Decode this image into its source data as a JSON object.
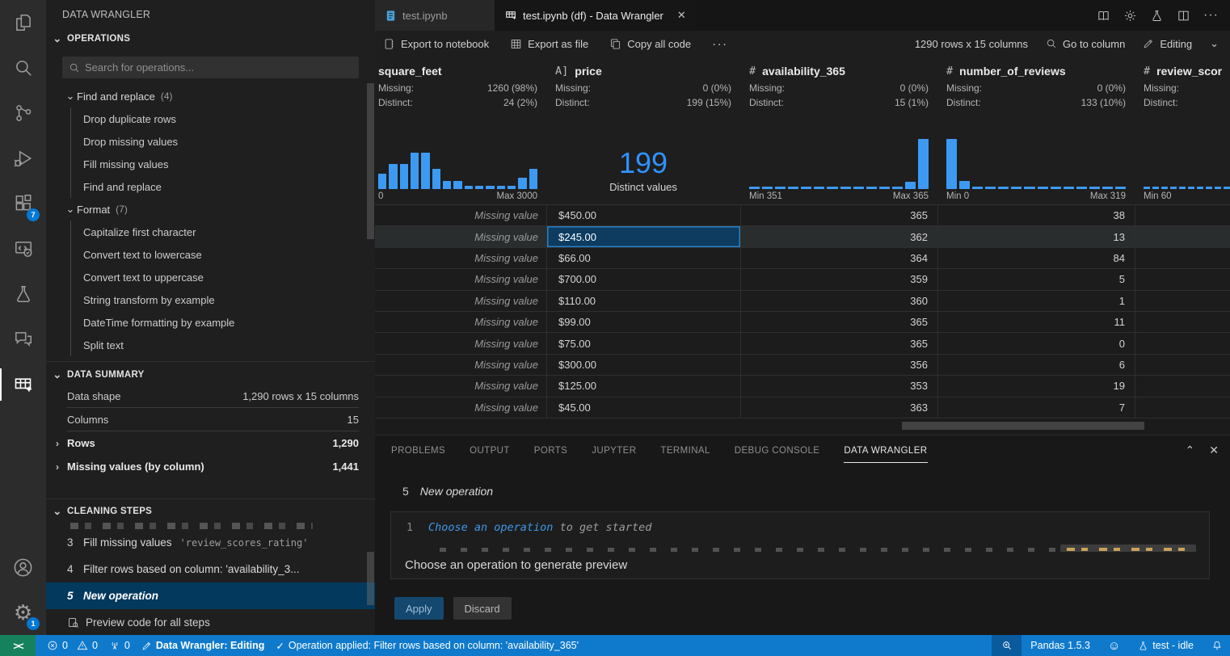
{
  "app": {
    "title": "DATA WRANGLER"
  },
  "activity_bar": {
    "extensions_badge": "7",
    "settings_badge": "1"
  },
  "sidebar": {
    "operations": {
      "header": "OPERATIONS",
      "search_placeholder": "Search for operations...",
      "groups": [
        {
          "label": "Find and replace",
          "count": "(4)",
          "items": [
            "Drop duplicate rows",
            "Drop missing values",
            "Fill missing values",
            "Find and replace"
          ]
        },
        {
          "label": "Format",
          "count": "(7)",
          "items": [
            "Capitalize first character",
            "Convert text to lowercase",
            "Convert text to uppercase",
            "String transform by example",
            "DateTime formatting by example",
            "Split text"
          ]
        }
      ]
    },
    "data_summary": {
      "header": "DATA SUMMARY",
      "shape_label": "Data shape",
      "shape_value": "1,290 rows x 15 columns",
      "columns_label": "Columns",
      "columns_value": "15",
      "rows_label": "Rows",
      "rows_value": "1,290",
      "missing_label": "Missing values (by column)",
      "missing_value": "1,441"
    },
    "cleaning_steps": {
      "header": "CLEANING STEPS",
      "steps": [
        {
          "num": "3",
          "label": "Fill missing values",
          "arg": "'review_scores_rating'"
        },
        {
          "num": "4",
          "label": "Filter rows based on column: 'availability_3...",
          "arg": ""
        },
        {
          "num": "5",
          "label": "New operation",
          "arg": ""
        }
      ],
      "preview_label": "Preview code for all steps"
    }
  },
  "tabs": {
    "inactive": "test.ipynb",
    "active": "test.ipynb (df) - Data Wrangler"
  },
  "toolbar": {
    "export_notebook": "Export to notebook",
    "export_file": "Export as file",
    "copy_code": "Copy all code",
    "shape": "1290 rows x 15 columns",
    "goto": "Go to column",
    "mode": "Editing"
  },
  "grid": {
    "columns": [
      {
        "name": "square_feet",
        "type_glyph": "",
        "missing_label": "Missing:",
        "missing": "1260 (98%)",
        "distinct_label": "Distinct:",
        "distinct": "24 (2%)",
        "min": "0",
        "max": "Max 3000",
        "hist": [
          30,
          50,
          50,
          72,
          72,
          40,
          16,
          16,
          6,
          6,
          6,
          6,
          6,
          22,
          40
        ]
      },
      {
        "name": "price",
        "type_glyph": "A]",
        "missing_label": "Missing:",
        "missing": "0 (0%)",
        "distinct_label": "Distinct:",
        "distinct": "199 (15%)",
        "big_value": "199",
        "big_label": "Distinct values"
      },
      {
        "name": "availability_365",
        "type_glyph": "#",
        "missing_label": "Missing:",
        "missing": "0 (0%)",
        "distinct_label": "Distinct:",
        "distinct": "15 (1%)",
        "min": "Min 351",
        "max": "Max 365",
        "hist": [
          5,
          5,
          5,
          5,
          5,
          5,
          5,
          5,
          5,
          5,
          5,
          5,
          14,
          100
        ]
      },
      {
        "name": "number_of_reviews",
        "type_glyph": "#",
        "missing_label": "Missing:",
        "missing": "0 (0%)",
        "distinct_label": "Distinct:",
        "distinct": "133 (10%)",
        "min": "Min 0",
        "max": "Max 319",
        "hist": [
          100,
          16,
          5,
          5,
          5,
          5,
          5,
          5,
          5,
          5,
          5,
          5,
          5,
          5
        ]
      },
      {
        "name": "review_scor",
        "type_glyph": "#",
        "missing_label": "Missing:",
        "missing": "",
        "distinct_label": "Distinct:",
        "distinct": "",
        "min": "Min 60",
        "max": "",
        "hist": [
          5,
          5,
          5,
          5,
          5,
          5,
          5,
          5,
          5,
          5
        ]
      }
    ],
    "rows": [
      [
        "Missing value",
        "$450.00",
        "365",
        "38",
        ""
      ],
      [
        "Missing value",
        "$245.00",
        "362",
        "13",
        ""
      ],
      [
        "Missing value",
        "$66.00",
        "364",
        "84",
        ""
      ],
      [
        "Missing value",
        "$700.00",
        "359",
        "5",
        ""
      ],
      [
        "Missing value",
        "$110.00",
        "360",
        "1",
        ""
      ],
      [
        "Missing value",
        "$99.00",
        "365",
        "11",
        ""
      ],
      [
        "Missing value",
        "$75.00",
        "365",
        "0",
        ""
      ],
      [
        "Missing value",
        "$300.00",
        "356",
        "6",
        ""
      ],
      [
        "Missing value",
        "$125.00",
        "353",
        "19",
        ""
      ],
      [
        "Missing value",
        "$45.00",
        "363",
        "7",
        ""
      ]
    ]
  },
  "panel": {
    "tabs": [
      "PROBLEMS",
      "OUTPUT",
      "PORTS",
      "JUPYTER",
      "TERMINAL",
      "DEBUG CONSOLE",
      "DATA WRANGLER"
    ],
    "step_num": "5",
    "step_title": "New operation",
    "line_num": "1",
    "code_action": "Choose an operation",
    "code_rest": " to get started",
    "overlay": "Choose an operation to generate preview",
    "apply": "Apply",
    "discard": "Discard"
  },
  "status_bar": {
    "errors": "0",
    "warnings": "0",
    "ports": "0",
    "mode": "Data Wrangler: Editing",
    "message": "Operation applied: Filter rows based on column: 'availability_365'",
    "pandas": "Pandas 1.5.3",
    "kernel": "test - idle"
  },
  "colors": {
    "accent": "#3d9af2",
    "status_blue": "#0f7acc",
    "remote_green": "#16825d",
    "selection_blue": "#04395e"
  }
}
